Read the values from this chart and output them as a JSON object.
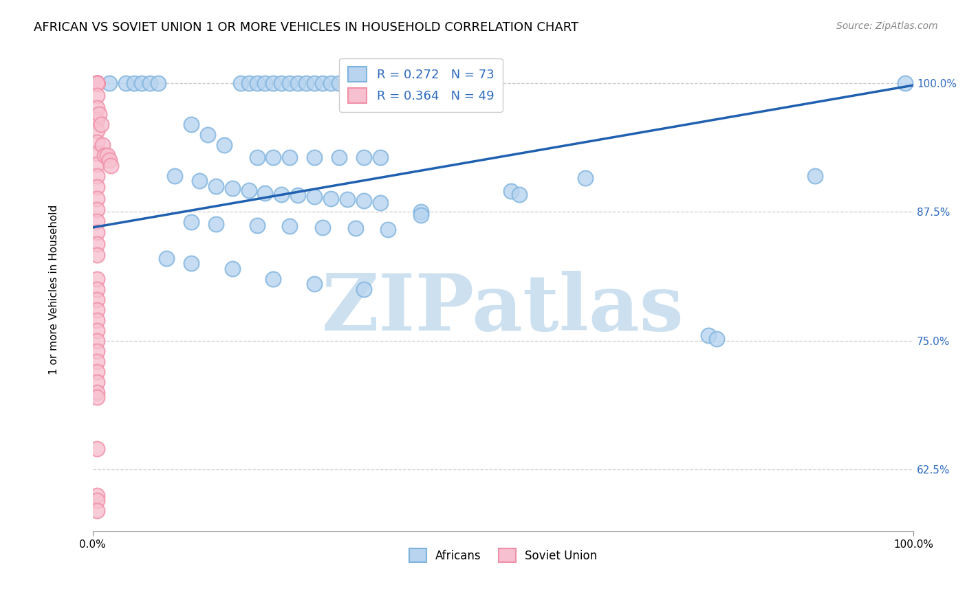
{
  "title": "AFRICAN VS SOVIET UNION 1 OR MORE VEHICLES IN HOUSEHOLD CORRELATION CHART",
  "source": "Source: ZipAtlas.com",
  "ylabel": "1 or more Vehicles in Household",
  "y_tick_values": [
    0.625,
    0.75,
    0.875,
    1.0
  ],
  "xlim": [
    0.0,
    1.0
  ],
  "ylim": [
    0.565,
    1.035
  ],
  "blue_color": "#7eb3de",
  "blue_face": "#b8d4ef",
  "pink_color": "#f090a8",
  "pink_face": "#f7c0d0",
  "trend_color": "#2060b0",
  "trend_start_y": 0.86,
  "trend_end_y": 0.998,
  "watermark": "ZIPatlas",
  "watermark_color": "#cce0f0",
  "title_fontsize": 13,
  "legend_fontsize": 13,
  "tick_fontsize": 11,
  "source_fontsize": 10,
  "africans_x": [
    0.02,
    0.04,
    0.05,
    0.06,
    0.07,
    0.08,
    0.18,
    0.19,
    0.2,
    0.21,
    0.22,
    0.23,
    0.24,
    0.25,
    0.26,
    0.27,
    0.28,
    0.29,
    0.3,
    0.12,
    0.14,
    0.16,
    0.2,
    0.22,
    0.24,
    0.27,
    0.3,
    0.33,
    0.35,
    0.1,
    0.13,
    0.15,
    0.17,
    0.19,
    0.21,
    0.23,
    0.25,
    0.27,
    0.29,
    0.31,
    0.33,
    0.35,
    0.12,
    0.15,
    0.2,
    0.24,
    0.28,
    0.32,
    0.36,
    0.09,
    0.12,
    0.17,
    0.22,
    0.27,
    0.33,
    0.4,
    0.4,
    0.51,
    0.52,
    0.6,
    0.75,
    0.76,
    0.88,
    0.99
  ],
  "africans_y": [
    1.0,
    1.0,
    1.0,
    1.0,
    1.0,
    1.0,
    1.0,
    1.0,
    1.0,
    1.0,
    1.0,
    1.0,
    1.0,
    1.0,
    1.0,
    1.0,
    1.0,
    1.0,
    1.0,
    0.96,
    0.95,
    0.94,
    0.928,
    0.928,
    0.928,
    0.928,
    0.928,
    0.928,
    0.928,
    0.91,
    0.905,
    0.9,
    0.898,
    0.896,
    0.893,
    0.892,
    0.891,
    0.89,
    0.888,
    0.887,
    0.886,
    0.884,
    0.865,
    0.863,
    0.862,
    0.861,
    0.86,
    0.859,
    0.858,
    0.83,
    0.825,
    0.82,
    0.81,
    0.805,
    0.8,
    0.875,
    0.872,
    0.895,
    0.892,
    0.908,
    0.755,
    0.752,
    0.91,
    1.0
  ],
  "soviet_x": [
    0.005,
    0.005,
    0.005,
    0.005,
    0.005,
    0.005,
    0.005,
    0.005,
    0.005,
    0.005,
    0.005,
    0.005,
    0.005,
    0.005,
    0.005,
    0.005,
    0.005,
    0.005,
    0.005,
    0.005,
    0.005,
    0.005,
    0.005,
    0.005,
    0.005,
    0.008,
    0.01,
    0.012,
    0.014,
    0.018,
    0.02,
    0.022,
    0.005,
    0.005,
    0.005,
    0.005,
    0.005,
    0.005,
    0.005,
    0.005,
    0.005,
    0.005,
    0.005,
    0.005,
    0.005,
    0.005,
    0.005,
    0.005,
    0.005
  ],
  "soviet_y": [
    1.0,
    1.0,
    1.0,
    1.0,
    1.0,
    1.0,
    1.0,
    1.0,
    1.0,
    1.0,
    0.988,
    0.976,
    0.965,
    0.954,
    0.943,
    0.932,
    0.921,
    0.91,
    0.899,
    0.888,
    0.877,
    0.866,
    0.855,
    0.844,
    0.833,
    0.97,
    0.96,
    0.94,
    0.93,
    0.93,
    0.925,
    0.92,
    0.81,
    0.8,
    0.79,
    0.78,
    0.77,
    0.76,
    0.75,
    0.74,
    0.73,
    0.72,
    0.71,
    0.7,
    0.695,
    0.645,
    0.6,
    0.595,
    0.585
  ]
}
